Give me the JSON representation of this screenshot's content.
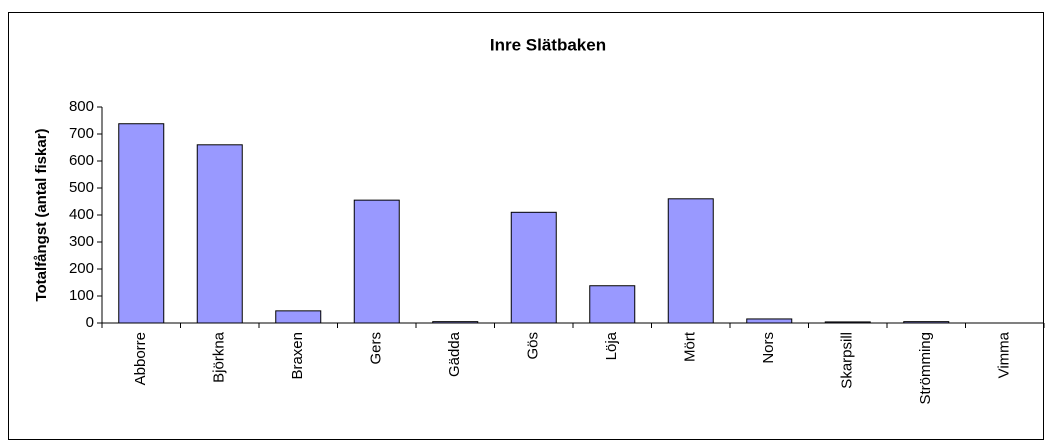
{
  "chart_data": {
    "type": "bar",
    "title": "Inre Slätbaken",
    "y_label": "Totalfångst (antal fiskar)",
    "categories": [
      "Abborre",
      "Björkna",
      "Braxen",
      "Gers",
      "Gädda",
      "Gös",
      "Löja",
      "Mört",
      "Nors",
      "Skarpsill",
      "Strömming",
      "Vimma"
    ],
    "values": [
      738,
      660,
      45,
      455,
      5,
      410,
      138,
      460,
      15,
      4,
      5,
      0
    ],
    "color": "#9999ff",
    "ylim": [
      0,
      800
    ],
    "yticks": [
      0,
      100,
      200,
      300,
      400,
      500,
      600,
      700,
      800
    ],
    "grid": false
  }
}
